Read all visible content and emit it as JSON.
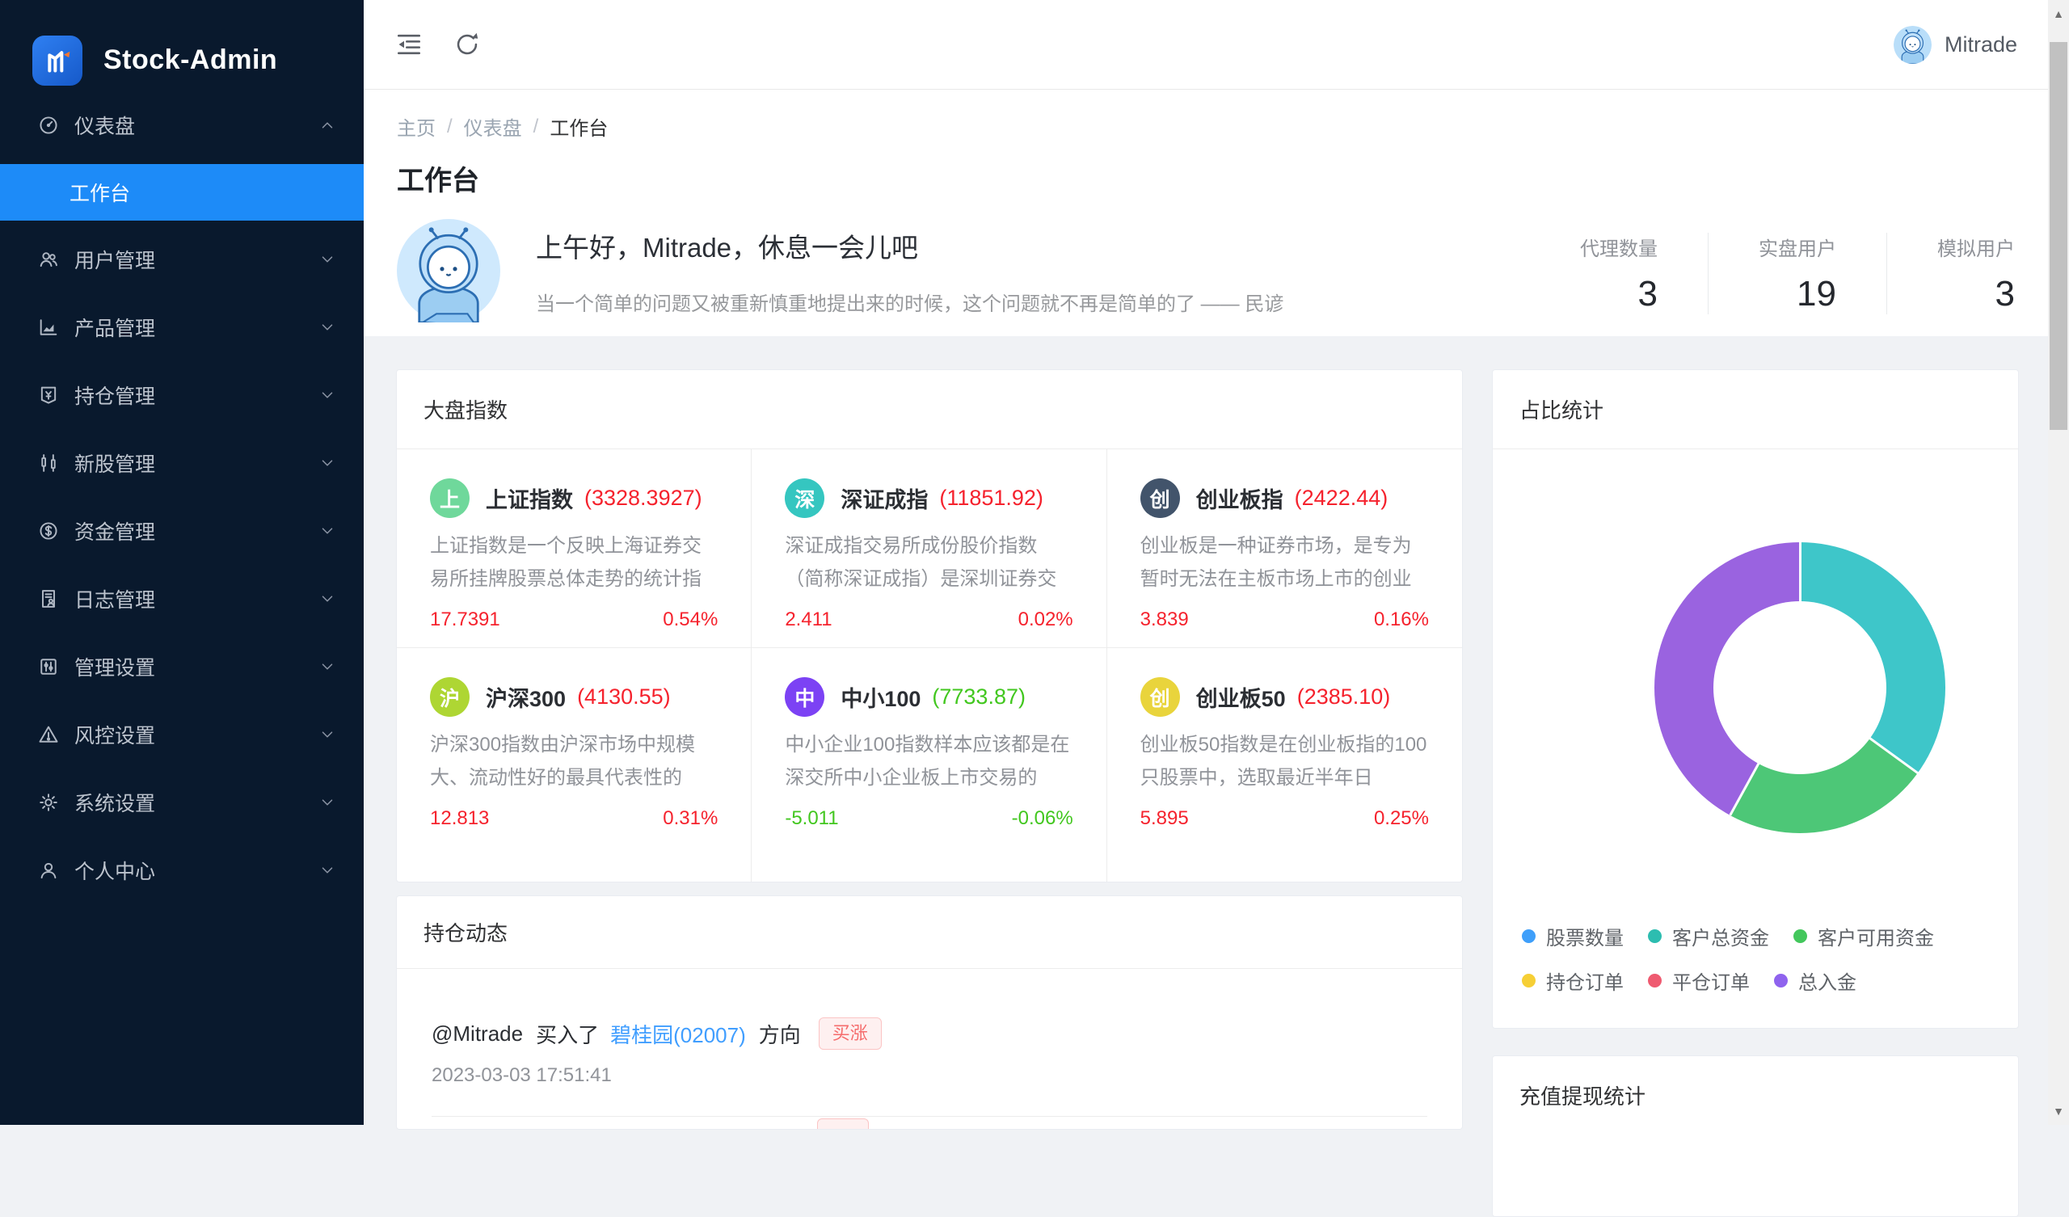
{
  "app": {
    "name": "Stock-Admin"
  },
  "sidebar": {
    "items": [
      {
        "label": "仪表盘",
        "children": [
          {
            "label": "工作台"
          }
        ]
      },
      {
        "label": "用户管理"
      },
      {
        "label": "产品管理"
      },
      {
        "label": "持仓管理"
      },
      {
        "label": "新股管理"
      },
      {
        "label": "资金管理"
      },
      {
        "label": "日志管理"
      },
      {
        "label": "管理设置"
      },
      {
        "label": "风控设置"
      },
      {
        "label": "系统设置"
      },
      {
        "label": "个人中心"
      }
    ]
  },
  "header": {
    "username": "Mitrade"
  },
  "breadcrumb": {
    "sep": "/",
    "items": [
      "主页",
      "仪表盘",
      "工作台"
    ]
  },
  "page": {
    "title": "工作台"
  },
  "greeting": {
    "title": "上午好，Mitrade，休息一会儿吧",
    "subtitle": "当一个简单的问题又被重新慎重地提出来的时候，这个问题就不再是简单的了 —— 民谚"
  },
  "stats": [
    {
      "label": "代理数量",
      "value": "3"
    },
    {
      "label": "实盘用户",
      "value": "19"
    },
    {
      "label": "模拟用户",
      "value": "3"
    }
  ],
  "market_index": {
    "title": "大盘指数",
    "tiles": [
      {
        "badge": "上",
        "badge_color": "#6fd89b",
        "name": "上证指数",
        "value": "(3328.3927)",
        "desc": "上证指数是一个反映上海证券交易所挂牌股票总体走势的统计指",
        "change": "17.7391",
        "pct": "0.54%",
        "color": "#f5222d"
      },
      {
        "badge": "深",
        "badge_color": "#35c6c0",
        "name": "深证成指",
        "value": "(11851.92)",
        "desc": "深证成指交易所成份股价指数（简称深证成指）是深圳证券交",
        "change": "2.411",
        "pct": "0.02%",
        "color": "#f5222d"
      },
      {
        "badge": "创",
        "badge_color": "#42546b",
        "name": "创业板指",
        "value": "(2422.44)",
        "desc": "创业板是一种证券市场，是专为暂时无法在主板市场上市的创业",
        "change": "3.839",
        "pct": "0.16%",
        "color": "#f5222d"
      },
      {
        "badge": "沪",
        "badge_color": "#aed633",
        "name": "沪深300",
        "value": "(4130.55)",
        "desc": "沪深300指数由沪深市场中规模大、流动性好的最具代表性的",
        "change": "12.813",
        "pct": "0.31%",
        "color": "#f5222d"
      },
      {
        "badge": "中",
        "badge_color": "#7c42f4",
        "name": "中小100",
        "value": "(7733.87)",
        "desc": "中小企业100指数样本应该都是在深交所中小企业板上市交易的",
        "change": "-5.011",
        "pct": "-0.06%",
        "color": "#42c71f"
      },
      {
        "badge": "创",
        "badge_color": "#e9d43c",
        "name": "创业板50",
        "value": "(2385.10)",
        "desc": "创业板50指数是在创业板指的100只股票中，选取最近半年日",
        "change": "5.895",
        "pct": "0.25%",
        "color": "#f5222d"
      }
    ]
  },
  "position_feed": {
    "title": "持仓动态",
    "items": [
      {
        "user": "@Mitrade",
        "action": "买入了",
        "stock": "碧桂园(02007)",
        "direction_label": "方向",
        "tag": "买涨",
        "time": "2023-03-03 17:51:41"
      }
    ]
  },
  "ratio_stats": {
    "title": "占比统计",
    "chart_data": {
      "type": "pie",
      "title": "占比统计",
      "donut": true,
      "legend_position": "bottom",
      "legend": [
        {
          "label": "股票数量",
          "color": "#3f9ffa"
        },
        {
          "label": "客户总资金",
          "color": "#2dbdb0"
        },
        {
          "label": "客户可用资金",
          "color": "#43c75c"
        },
        {
          "label": "持仓订单",
          "color": "#f6cf35"
        },
        {
          "label": "平仓订单",
          "color": "#ef5a70"
        },
        {
          "label": "总入金",
          "color": "#8f63ee"
        }
      ],
      "segments": [
        {
          "label": "客户总资金",
          "pct": 35,
          "color": "#3ec6c9"
        },
        {
          "label": "客户可用资金",
          "pct": 23,
          "color": "#4dc777"
        },
        {
          "label": "总入金",
          "pct": 42,
          "color": "#9a63e0"
        }
      ]
    }
  },
  "recharge_stats": {
    "title": "充值提现统计"
  },
  "colors": {
    "accent": "#1d8bf8",
    "up_red": "#f5222d",
    "down_green": "#42c71f",
    "link_blue": "#409eff",
    "sidebar_bg": "#09192d"
  }
}
